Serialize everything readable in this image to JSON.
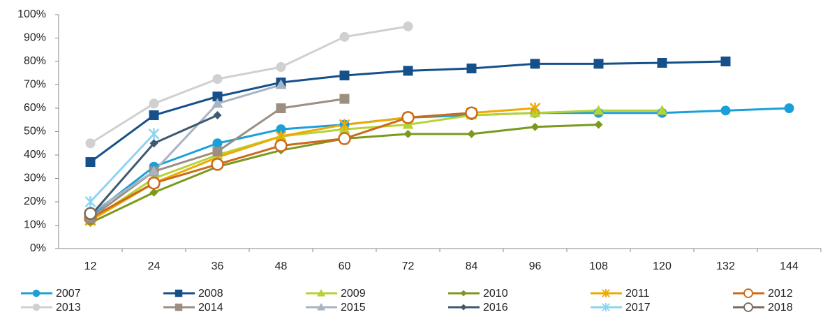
{
  "chart_data": {
    "type": "line",
    "categories": [
      "12",
      "24",
      "36",
      "48",
      "60",
      "72",
      "84",
      "96",
      "108",
      "120",
      "132",
      "144"
    ],
    "ylim": [
      0,
      100
    ],
    "yticks": [
      {
        "value": 0,
        "label": "0%"
      },
      {
        "value": 10,
        "label": "10%"
      },
      {
        "value": 20,
        "label": "20%"
      },
      {
        "value": 30,
        "label": "30%"
      },
      {
        "value": 40,
        "label": "40%"
      },
      {
        "value": 50,
        "label": "50%"
      },
      {
        "value": 60,
        "label": "60%"
      },
      {
        "value": 70,
        "label": "70%"
      },
      {
        "value": 80,
        "label": "80%"
      },
      {
        "value": 90,
        "label": "90%"
      },
      {
        "value": 100,
        "label": "100%"
      }
    ],
    "grid": false,
    "legend": "bottom",
    "series": [
      {
        "name": "2007",
        "color": "#1aa0d8",
        "marker": "circle",
        "values": [
          14,
          35,
          45,
          51,
          53,
          56,
          57,
          58,
          58,
          58,
          59,
          60
        ]
      },
      {
        "name": "2008",
        "color": "#15508a",
        "marker": "square",
        "values": [
          37,
          57,
          65,
          71,
          74,
          76,
          77,
          79,
          79,
          79.4,
          80,
          null
        ]
      },
      {
        "name": "2009",
        "color": "#b5d334",
        "marker": "triangle",
        "values": [
          12,
          30,
          40,
          48,
          51,
          53,
          57,
          58,
          59,
          59,
          null,
          null
        ]
      },
      {
        "name": "2010",
        "color": "#7a9a1e",
        "marker": "diamond",
        "values": [
          11,
          24,
          35,
          42,
          47,
          49,
          49,
          52,
          53,
          null,
          null,
          null
        ]
      },
      {
        "name": "2011",
        "color": "#f0a800",
        "marker": "asterisk",
        "values": [
          12,
          28,
          39,
          48,
          53,
          56,
          58,
          60,
          null,
          null,
          null,
          null
        ]
      },
      {
        "name": "2012",
        "color": "#cc6a1a",
        "marker": "open",
        "values": [
          13,
          28,
          36,
          44,
          47,
          56,
          58,
          null,
          null,
          null,
          null,
          null
        ]
      },
      {
        "name": "2013",
        "color": "#d0d0d0",
        "marker": "circle",
        "values": [
          45,
          62,
          72.5,
          77.6,
          90.5,
          95,
          null,
          null,
          null,
          null,
          null,
          null
        ]
      },
      {
        "name": "2014",
        "color": "#9c8f82",
        "marker": "square",
        "values": [
          13,
          33,
          41.5,
          60,
          64,
          null,
          null,
          null,
          null,
          null,
          null,
          null
        ]
      },
      {
        "name": "2015",
        "color": "#a6b4c4",
        "marker": "triangle",
        "values": [
          15,
          33,
          62,
          70,
          null,
          null,
          null,
          null,
          null,
          null,
          null,
          null
        ]
      },
      {
        "name": "2016",
        "color": "#3e5970",
        "marker": "diamond",
        "values": [
          14,
          45,
          57,
          null,
          null,
          null,
          null,
          null,
          null,
          null,
          null,
          null
        ]
      },
      {
        "name": "2017",
        "color": "#8fd3f2",
        "marker": "asterisk",
        "values": [
          20,
          49,
          null,
          null,
          null,
          null,
          null,
          null,
          null,
          null,
          null,
          null
        ]
      },
      {
        "name": "2018",
        "color": "#7a6a60",
        "marker": "open",
        "values": [
          15,
          null,
          null,
          null,
          null,
          null,
          null,
          null,
          null,
          null,
          null,
          null
        ]
      }
    ]
  }
}
